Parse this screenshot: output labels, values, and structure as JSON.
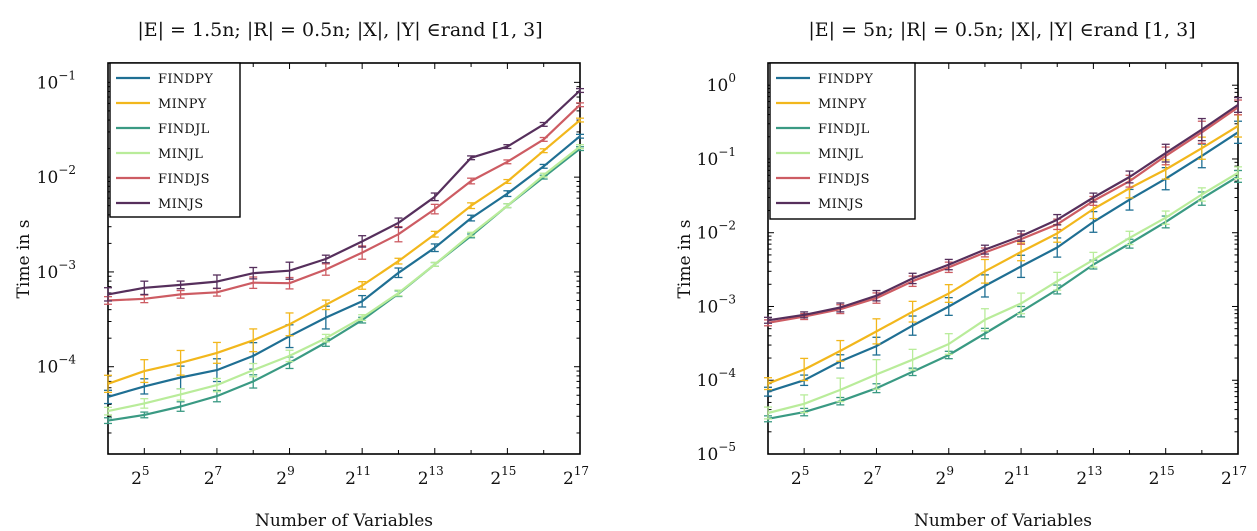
{
  "chart_data": [
    {
      "type": "line",
      "title": "|E| = 1.5n; |R| = 0.5n; |X|, |Y| ∈rand [1, 3]",
      "xlabel": "Number of Variables",
      "ylabel": "Time in s",
      "x_scale": "log2",
      "y_scale": "log10",
      "xlim": [
        16,
        131072
      ],
      "ylim": [
        1.2e-05,
        0.16
      ],
      "x_ticks": [
        32,
        128,
        512,
        2048,
        8192,
        32768,
        131072
      ],
      "x_tick_labels": [
        "2^5",
        "2^7",
        "2^9",
        "2^11",
        "2^13",
        "2^15",
        "2^17"
      ],
      "y_ticks": [
        0.0001,
        0.001,
        0.01,
        0.1
      ],
      "y_tick_labels": [
        "10^-4",
        "10^-3",
        "10^-2",
        "10^-1"
      ],
      "legend_position": "top-left",
      "x": [
        16,
        32,
        64,
        128,
        256,
        512,
        1024,
        2048,
        4096,
        8192,
        16384,
        32768,
        65536,
        131072
      ],
      "series": [
        {
          "name": "FINDPY",
          "color": "#1f6f93",
          "values": [
            4.8e-05,
            6.2e-05,
            7.7e-05,
            9.2e-05,
            0.00013,
            0.00021,
            0.00033,
            0.00049,
            0.00098,
            0.0018,
            0.0037,
            0.0067,
            0.013,
            0.027
          ],
          "err": [
            0.07,
            0.08,
            0.12,
            0.12,
            0.14,
            0.12,
            0.12,
            0.06,
            0.05,
            0.04,
            0.03,
            0.03,
            0.02,
            0.02
          ]
        },
        {
          "name": "MINPY",
          "color": "#f2b71c",
          "values": [
            6.6e-05,
            9e-05,
            0.00011,
            0.00014,
            0.00019,
            0.00028,
            0.00045,
            0.00072,
            0.0013,
            0.0025,
            0.005,
            0.009,
            0.019,
            0.04
          ],
          "err": [
            0.09,
            0.12,
            0.13,
            0.11,
            0.12,
            0.12,
            0.05,
            0.04,
            0.03,
            0.03,
            0.03,
            0.02,
            0.02,
            0.02
          ]
        },
        {
          "name": "FINDJL",
          "color": "#3a9a83",
          "values": [
            2.7e-05,
            3.1e-05,
            3.8e-05,
            4.9e-05,
            7e-05,
            0.00011,
            0.00018,
            0.00031,
            0.00059,
            0.0012,
            0.0024,
            0.005,
            0.01,
            0.02
          ],
          "err": [
            0.03,
            0.03,
            0.05,
            0.06,
            0.07,
            0.06,
            0.04,
            0.03,
            0.03,
            0.02,
            0.02,
            0.02,
            0.02,
            0.02
          ]
        },
        {
          "name": "MINJL",
          "color": "#b9ec9a",
          "values": [
            3.4e-05,
            4.1e-05,
            5.1e-05,
            6.4e-05,
            9.2e-05,
            0.00013,
            0.0002,
            0.00033,
            0.0006,
            0.0012,
            0.0025,
            0.005,
            0.0105,
            0.021
          ],
          "err": [
            0.04,
            0.05,
            0.06,
            0.07,
            0.07,
            0.06,
            0.04,
            0.03,
            0.03,
            0.02,
            0.02,
            0.02,
            0.02,
            0.02
          ]
        },
        {
          "name": "FINDJS",
          "color": "#cd5c63",
          "values": [
            0.0005,
            0.00052,
            0.00058,
            0.00061,
            0.00077,
            0.00076,
            0.00106,
            0.0016,
            0.0025,
            0.0046,
            0.0091,
            0.0145,
            0.025,
            0.058
          ],
          "err": [
            0.04,
            0.04,
            0.04,
            0.04,
            0.06,
            0.06,
            0.06,
            0.07,
            0.08,
            0.05,
            0.03,
            0.02,
            0.02,
            0.02
          ]
        },
        {
          "name": "MINJS",
          "color": "#562f5c",
          "values": [
            0.00058,
            0.00068,
            0.00073,
            0.00079,
            0.00097,
            0.00103,
            0.00137,
            0.0021,
            0.0033,
            0.0062,
            0.016,
            0.021,
            0.036,
            0.082
          ],
          "err": [
            0.07,
            0.07,
            0.04,
            0.07,
            0.06,
            0.09,
            0.04,
            0.06,
            0.05,
            0.04,
            0.02,
            0.02,
            0.02,
            0.02
          ]
        }
      ]
    },
    {
      "type": "line",
      "title": "|E| = 5n; |R| = 0.5n; |X|, |Y| ∈rand [1, 3]",
      "xlabel": "Number of Variables",
      "ylabel": "Time in s",
      "x_scale": "log2",
      "y_scale": "log10",
      "xlim": [
        16,
        131072
      ],
      "ylim": [
        1e-05,
        2
      ],
      "x_ticks": [
        32,
        128,
        512,
        2048,
        8192,
        32768,
        131072
      ],
      "x_tick_labels": [
        "2^5",
        "2^7",
        "2^9",
        "2^11",
        "2^13",
        "2^15",
        "2^17"
      ],
      "y_ticks": [
        1e-05,
        0.0001,
        0.001,
        0.01,
        0.1,
        1
      ],
      "y_tick_labels": [
        "10^-5",
        "10^-4",
        "10^-3",
        "10^-2",
        "10^-1",
        "10^0"
      ],
      "legend_position": "top-left",
      "x": [
        16,
        32,
        64,
        128,
        256,
        512,
        1024,
        2048,
        4096,
        8192,
        16384,
        32768,
        65536,
        131072
      ],
      "series": [
        {
          "name": "FINDPY",
          "color": "#1f6f93",
          "values": [
            7e-05,
            0.0001,
            0.00018,
            0.00029,
            0.00055,
            0.001,
            0.0019,
            0.0035,
            0.0063,
            0.014,
            0.028,
            0.054,
            0.11,
            0.23
          ],
          "err": [
            0.06,
            0.07,
            0.09,
            0.12,
            0.13,
            0.12,
            0.15,
            0.15,
            0.13,
            0.14,
            0.14,
            0.15,
            0.16,
            0.15
          ]
        },
        {
          "name": "MINPY",
          "color": "#f2b71c",
          "values": [
            9e-05,
            0.00014,
            0.00025,
            0.00046,
            0.00085,
            0.0015,
            0.003,
            0.0055,
            0.0098,
            0.021,
            0.04,
            0.072,
            0.14,
            0.28
          ],
          "err": [
            0.08,
            0.15,
            0.14,
            0.17,
            0.14,
            0.12,
            0.16,
            0.12,
            0.12,
            0.13,
            0.13,
            0.13,
            0.15,
            0.15
          ]
        },
        {
          "name": "FINDJL",
          "color": "#3a9a83",
          "values": [
            3e-05,
            3.7e-05,
            5.2e-05,
            7.8e-05,
            0.00013,
            0.00022,
            0.00043,
            0.00085,
            0.0017,
            0.0037,
            0.0071,
            0.014,
            0.029,
            0.058
          ],
          "err": [
            0.04,
            0.05,
            0.05,
            0.06,
            0.05,
            0.05,
            0.07,
            0.07,
            0.06,
            0.06,
            0.06,
            0.08,
            0.09,
            0.08
          ]
        },
        {
          "name": "MINJL",
          "color": "#b9ec9a",
          "values": [
            3.6e-05,
            4.8e-05,
            7.4e-05,
            0.00012,
            0.00019,
            0.00031,
            0.00066,
            0.0011,
            0.0022,
            0.0043,
            0.0085,
            0.016,
            0.033,
            0.065
          ],
          "err": [
            0.08,
            0.12,
            0.16,
            0.2,
            0.14,
            0.14,
            0.15,
            0.14,
            0.12,
            0.1,
            0.09,
            0.09,
            0.09,
            0.08
          ]
        },
        {
          "name": "FINDJS",
          "color": "#cd5c63",
          "values": [
            0.0006,
            0.00073,
            0.00092,
            0.0013,
            0.0022,
            0.0034,
            0.0054,
            0.0082,
            0.013,
            0.027,
            0.05,
            0.11,
            0.23,
            0.5
          ],
          "err": [
            0.04,
            0.04,
            0.06,
            0.07,
            0.07,
            0.07,
            0.06,
            0.07,
            0.07,
            0.06,
            0.08,
            0.12,
            0.15,
            0.1
          ]
        },
        {
          "name": "MINJS",
          "color": "#562f5c",
          "values": [
            0.00065,
            0.00077,
            0.00097,
            0.0014,
            0.0024,
            0.0037,
            0.0059,
            0.009,
            0.015,
            0.03,
            0.057,
            0.12,
            0.25,
            0.54
          ],
          "err": [
            0.04,
            0.04,
            0.06,
            0.07,
            0.07,
            0.07,
            0.06,
            0.07,
            0.07,
            0.06,
            0.08,
            0.12,
            0.15,
            0.1
          ]
        }
      ]
    }
  ]
}
